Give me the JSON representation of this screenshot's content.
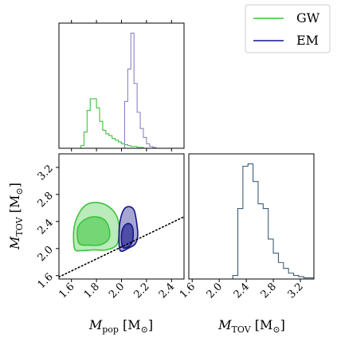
{
  "chart_data": {
    "type": "corner",
    "colors": {
      "gw": "#3cc43c",
      "em": "#14148a",
      "tov_hist": "#3b5f7a",
      "reference_line": "#000000"
    },
    "legend": {
      "placement": "top-right",
      "entries": [
        {
          "label": "GW",
          "color": "#3cc43c"
        },
        {
          "label": "EM",
          "color": "#14148a"
        }
      ]
    },
    "axes": {
      "mpop": {
        "label_parts": [
          "M",
          "pop",
          " [M",
          "⊙",
          "]"
        ],
        "range": [
          1.5,
          2.5
        ],
        "ticks": [
          1.6,
          1.8,
          2.0,
          2.2,
          2.4
        ],
        "tick_labels": [
          "1.6",
          "1.8",
          "2.0",
          "2.2",
          "2.4"
        ]
      },
      "mtov": {
        "label_parts": [
          "M",
          "TOV",
          " [M",
          "⊙",
          "]"
        ],
        "range": [
          1.55,
          3.4
        ],
        "ticks": [
          1.6,
          2.0,
          2.4,
          2.8,
          3.2
        ],
        "tick_labels": [
          "1.6",
          "2.0",
          "2.4",
          "2.8",
          "3.2"
        ]
      }
    },
    "hist_mpop": {
      "bin_start": 1.5,
      "bin_width": 0.025,
      "series": [
        {
          "name": "GW",
          "color": "#3cc43c",
          "values": [
            0,
            0,
            0,
            0,
            0,
            0,
            0,
            3,
            18,
            42,
            55,
            55,
            45,
            30,
            20,
            16,
            14,
            11,
            9,
            7,
            5,
            4,
            3,
            2,
            2,
            1,
            1,
            0,
            0,
            0,
            0,
            0,
            0,
            0,
            0,
            0,
            0,
            0,
            0,
            0
          ]
        },
        {
          "name": "EM",
          "color": "#8a82c2",
          "values": [
            0,
            0,
            0,
            0,
            0,
            0,
            0,
            0,
            0,
            0,
            0,
            0,
            0,
            0,
            0,
            0,
            0,
            0,
            0,
            0,
            0,
            52,
            88,
            128,
            72,
            40,
            22,
            12,
            5,
            2,
            1,
            0,
            0,
            0,
            0,
            0,
            0,
            0,
            0,
            0
          ]
        }
      ]
    },
    "hist_mtov": {
      "bin_start": 1.75,
      "bin_width": 0.075,
      "values": [
        0,
        0,
        0,
        0,
        0,
        0,
        3,
        60,
        96,
        98,
        83,
        64,
        60,
        34,
        22,
        14,
        9,
        5,
        3,
        2,
        1,
        1,
        0
      ]
    },
    "joint": {
      "gw_outer": [
        [
          1.625,
          2.0
        ],
        [
          1.62,
          2.3
        ],
        [
          1.66,
          2.52
        ],
        [
          1.72,
          2.65
        ],
        [
          1.8,
          2.68
        ],
        [
          1.88,
          2.64
        ],
        [
          1.95,
          2.52
        ],
        [
          1.98,
          2.36
        ],
        [
          1.98,
          2.2
        ],
        [
          1.96,
          2.05
        ],
        [
          1.88,
          1.98
        ],
        [
          1.78,
          1.98
        ],
        [
          1.68,
          1.97
        ]
      ],
      "gw_inner": [
        [
          1.66,
          2.08
        ],
        [
          1.65,
          2.3
        ],
        [
          1.7,
          2.42
        ],
        [
          1.78,
          2.47
        ],
        [
          1.86,
          2.43
        ],
        [
          1.9,
          2.3
        ],
        [
          1.9,
          2.15
        ],
        [
          1.84,
          2.06
        ],
        [
          1.74,
          2.05
        ]
      ],
      "em_outer": [
        [
          1.99,
          1.97
        ],
        [
          1.98,
          2.2
        ],
        [
          1.99,
          2.42
        ],
        [
          2.02,
          2.58
        ],
        [
          2.06,
          2.62
        ],
        [
          2.1,
          2.57
        ],
        [
          2.12,
          2.4
        ],
        [
          2.13,
          2.2
        ],
        [
          2.11,
          2.07
        ],
        [
          2.06,
          2.01
        ]
      ],
      "em_inner": [
        [
          2.01,
          2.02
        ],
        [
          2.0,
          2.2
        ],
        [
          2.02,
          2.33
        ],
        [
          2.06,
          2.37
        ],
        [
          2.09,
          2.3
        ],
        [
          2.09,
          2.12
        ],
        [
          2.06,
          2.03
        ]
      ],
      "reference_line": [
        [
          1.5,
          1.58
        ],
        [
          2.5,
          2.47
        ]
      ]
    }
  }
}
